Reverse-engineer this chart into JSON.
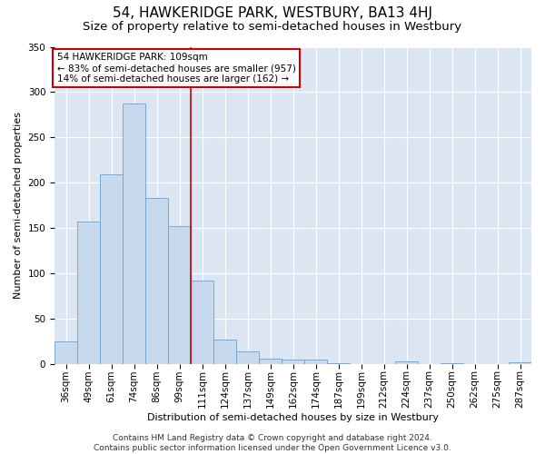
{
  "title": "54, HAWKERIDGE PARK, WESTBURY, BA13 4HJ",
  "subtitle": "Size of property relative to semi-detached houses in Westbury",
  "xlabel": "Distribution of semi-detached houses by size in Westbury",
  "ylabel": "Number of semi-detached properties",
  "categories": [
    "36sqm",
    "49sqm",
    "61sqm",
    "74sqm",
    "86sqm",
    "99sqm",
    "111sqm",
    "124sqm",
    "137sqm",
    "149sqm",
    "162sqm",
    "174sqm",
    "187sqm",
    "199sqm",
    "212sqm",
    "224sqm",
    "237sqm",
    "250sqm",
    "262sqm",
    "275sqm",
    "287sqm"
  ],
  "values": [
    25,
    157,
    209,
    287,
    183,
    152,
    92,
    27,
    14,
    6,
    5,
    5,
    1,
    0,
    0,
    3,
    0,
    1,
    0,
    0,
    2
  ],
  "bar_color": "#c8d9ee",
  "bar_edge_color": "#6a9fd8",
  "vline_position": 6.0,
  "vline_color": "#cc0000",
  "annotation_text": "54 HAWKERIDGE PARK: 109sqm\n← 83% of semi-detached houses are smaller (957)\n14% of semi-detached houses are larger (162) →",
  "annotation_box_color": "#ffffff",
  "annotation_box_edge_color": "#cc0000",
  "ylim": [
    0,
    350
  ],
  "yticks": [
    0,
    50,
    100,
    150,
    200,
    250,
    300,
    350
  ],
  "background_color": "#dce6f2",
  "footer": "Contains HM Land Registry data © Crown copyright and database right 2024.\nContains public sector information licensed under the Open Government Licence v3.0.",
  "title_fontsize": 11,
  "subtitle_fontsize": 9.5,
  "axis_label_fontsize": 8,
  "tick_fontsize": 7.5,
  "annotation_fontsize": 7.5,
  "footer_fontsize": 6.5
}
